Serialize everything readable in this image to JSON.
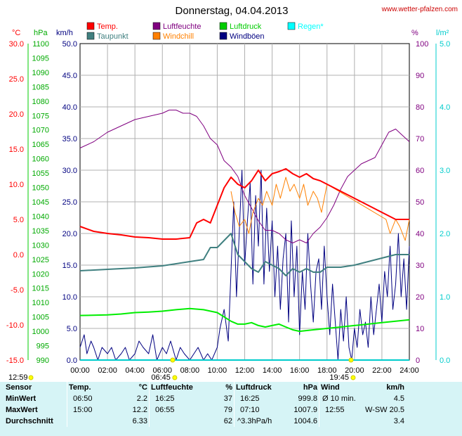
{
  "site": "www.wetter-pfalzen.com",
  "sun": {
    "rise": "06:45",
    "set": "19:45",
    "noon": "12:59"
  },
  "chart_data": {
    "type": "line",
    "title": "Donnerstag, 04.04.2013",
    "x_ticks": [
      "00:00",
      "02:00",
      "04:00",
      "06:00",
      "08:00",
      "10:00",
      "12:00",
      "14:00",
      "16:00",
      "18:00",
      "20:00",
      "22:00",
      "24:00"
    ],
    "axes": {
      "temp": {
        "unit": "°C",
        "color": "#ff0000",
        "min": -15,
        "max": 30,
        "ticks": [
          "30.0",
          "25.0",
          "20.0",
          "15.0",
          "10.0",
          "5.0",
          "0.0",
          "-5.0",
          "-10.0",
          "-15.0"
        ]
      },
      "pressure": {
        "unit": "hPa",
        "color": "#00aa00",
        "min": 990,
        "max": 1100,
        "ticks": [
          "1100",
          "1095",
          "1090",
          "1085",
          "1080",
          "1075",
          "1070",
          "1065",
          "1060",
          "1055",
          "1050",
          "1045",
          "1040",
          "1035",
          "1030",
          "1025",
          "1020",
          "1015",
          "1010",
          "1005",
          "1000",
          "995",
          "990"
        ]
      },
      "wind": {
        "unit": "km/h",
        "color": "#000080",
        "min": 0,
        "max": 50,
        "ticks": [
          "50.0",
          "45.0",
          "40.0",
          "35.0",
          "30.0",
          "25.0",
          "20.0",
          "15.0",
          "10.0",
          "5.0",
          "0.0"
        ]
      },
      "humidity": {
        "unit": "%",
        "color": "#800080",
        "min": 0,
        "max": 100,
        "ticks": [
          "100",
          "90",
          "80",
          "70",
          "60",
          "50",
          "40",
          "30",
          "20",
          "10",
          "0"
        ]
      },
      "rain": {
        "unit": "l/m²",
        "color": "#00cccc",
        "min": 0,
        "max": 5,
        "ticks": [
          "5.0",
          "4.0",
          "3.0",
          "2.0",
          "1.0",
          "0.0"
        ]
      }
    },
    "legend": [
      {
        "name": "Temp.",
        "color": "#ff0000"
      },
      {
        "name": "Luftfeuchte",
        "color": "#800080"
      },
      {
        "name": "Luftdruck",
        "color": "#00cc00"
      },
      {
        "name": "Regen*",
        "color": "#00ffff"
      },
      {
        "name": "Taupunkt",
        "color": "#408080"
      },
      {
        "name": "Windchill",
        "color": "#ff8000"
      },
      {
        "name": "Windböen",
        "color": "#000080"
      }
    ],
    "series": [
      {
        "name": "Temp.",
        "axis": "temp",
        "color": "#ff0000",
        "width": 2,
        "x": [
          0,
          1,
          2,
          3,
          4,
          5,
          6,
          7,
          8,
          8.5,
          9,
          9.5,
          10,
          10.5,
          11,
          11.5,
          12,
          12.5,
          13,
          13.5,
          14,
          14.5,
          15,
          15.5,
          16,
          16.5,
          17,
          17.5,
          18,
          18.5,
          19,
          19.5,
          20,
          21,
          22,
          23,
          24
        ],
        "y": [
          4,
          3.3,
          3,
          2.8,
          2.5,
          2.4,
          2.2,
          2.2,
          2.4,
          4.5,
          5,
          4.5,
          7,
          9.5,
          11,
          10,
          9.5,
          10.5,
          12,
          10.5,
          11.5,
          11.8,
          12.2,
          11.5,
          11,
          11.5,
          10.8,
          10.5,
          10,
          9.5,
          9,
          8.5,
          8,
          7,
          6,
          5,
          5
        ]
      },
      {
        "name": "Taupunkt",
        "axis": "temp",
        "color": "#408080",
        "width": 2,
        "x": [
          0,
          2,
          4,
          6,
          8,
          9,
          9.5,
          10,
          10.5,
          11,
          11.5,
          12,
          12.5,
          13,
          13.5,
          14,
          14.5,
          15,
          15.5,
          16,
          16.5,
          17,
          17.5,
          18,
          18.5,
          19,
          20,
          21,
          22,
          23,
          24
        ],
        "y": [
          -2.3,
          -2.1,
          -1.9,
          -1.6,
          -1,
          -0.7,
          1,
          1,
          2,
          3,
          0,
          -1,
          -2,
          -2.5,
          -1,
          -1.5,
          -2,
          -3,
          -2,
          -2.5,
          -2,
          -2.5,
          -2.5,
          -1.8,
          -1.8,
          -1.8,
          -1.5,
          -1,
          -0.5,
          0,
          0
        ]
      },
      {
        "name": "Luftfeuchte",
        "axis": "humidity",
        "color": "#800080",
        "width": 1,
        "x": [
          0,
          1,
          2,
          3,
          4,
          5,
          6,
          6.5,
          7,
          7.5,
          8,
          8.5,
          9,
          9.5,
          10,
          10.5,
          11,
          11.5,
          12,
          12.5,
          13,
          13.5,
          14,
          14.5,
          15,
          15.5,
          16,
          16.5,
          17,
          17.5,
          18,
          18.5,
          19,
          19.5,
          20,
          20.5,
          21,
          21.5,
          22,
          22.5,
          23,
          23.5,
          24
        ],
        "y": [
          67,
          69,
          72,
          74,
          76,
          77,
          78,
          79,
          79,
          78,
          78,
          77,
          74,
          70,
          68,
          63,
          61,
          58,
          52,
          48,
          44,
          41,
          41,
          40,
          38,
          37,
          38,
          37,
          40,
          42,
          45,
          49,
          54,
          58,
          60,
          62,
          63,
          64,
          68,
          72,
          73,
          71,
          69
        ]
      },
      {
        "name": "Windchill",
        "axis": "temp",
        "color": "#ff8000",
        "width": 1,
        "x": [
          11,
          11.3,
          11.6,
          12,
          12.3,
          12.6,
          13,
          13.3,
          13.6,
          14,
          14.3,
          14.6,
          15,
          15.3,
          15.6,
          16,
          16.3,
          16.6,
          17,
          17.3,
          17.6,
          18,
          22.3,
          22.6,
          23,
          23.3,
          23.7,
          24
        ],
        "y": [
          9,
          6,
          4,
          5,
          3,
          6,
          8,
          7,
          9,
          7,
          10,
          8,
          11,
          9,
          10,
          8,
          10,
          7,
          9,
          8,
          6,
          10,
          5,
          3,
          5,
          4,
          2,
          5
        ]
      },
      {
        "name": "Luftdruck",
        "axis": "pressure",
        "color": "#00ee00",
        "width": 2,
        "x": [
          0,
          2,
          3,
          4,
          5,
          6,
          7,
          8,
          9,
          10,
          10.5,
          11,
          11.5,
          12,
          12.5,
          13,
          13.5,
          14,
          14.5,
          15,
          15.5,
          16,
          17,
          18,
          19,
          20,
          21,
          22,
          23,
          24
        ],
        "y": [
          1005.5,
          1005.7,
          1006,
          1006.5,
          1006.7,
          1007,
          1007.5,
          1007.9,
          1007.5,
          1006.5,
          1005,
          1003.5,
          1002.5,
          1002.5,
          1003,
          1002,
          1001.5,
          1002,
          1002.5,
          1001.5,
          1000.5,
          1000,
          1000.5,
          1001,
          1001.5,
          1002,
          1002.5,
          1003,
          1003.5,
          1004
        ]
      },
      {
        "name": "Windböen",
        "axis": "wind",
        "color": "#000080",
        "width": 1,
        "x": [
          0,
          0.3,
          0.5,
          0.8,
          1,
          1.3,
          1.6,
          2,
          2.3,
          2.6,
          3,
          3.3,
          3.6,
          4,
          4.3,
          4.6,
          5,
          5.3,
          5.6,
          6,
          6.3,
          6.6,
          7,
          7.3,
          7.6,
          8,
          8.3,
          8.6,
          9,
          9.3,
          9.6,
          10,
          10.2,
          10.5,
          10.8,
          11,
          11.2,
          11.4,
          11.6,
          11.8,
          12,
          12.2,
          12.4,
          12.6,
          12.8,
          13,
          13.2,
          13.4,
          13.6,
          13.8,
          14,
          14.2,
          14.4,
          14.6,
          14.8,
          15,
          15.2,
          15.4,
          15.6,
          15.8,
          16,
          16.2,
          16.4,
          16.6,
          16.8,
          17,
          17.2,
          17.4,
          17.6,
          17.8,
          18,
          18.2,
          18.4,
          18.6,
          18.8,
          19,
          19.2,
          19.4,
          19.6,
          19.8,
          20,
          20.2,
          20.4,
          20.6,
          20.8,
          21,
          21.2,
          21.4,
          21.6,
          21.8,
          22,
          22.2,
          22.4,
          22.6,
          22.8,
          23,
          23.2,
          23.4,
          23.6,
          23.8,
          24
        ],
        "y": [
          2,
          4,
          1,
          3,
          2,
          0,
          2,
          1,
          2,
          0,
          1,
          2,
          0,
          1,
          3,
          2,
          1,
          4,
          0,
          2,
          1,
          3,
          0,
          2,
          1,
          0,
          1,
          2,
          0,
          1,
          0,
          2,
          5,
          8,
          3,
          14,
          25,
          10,
          20,
          30,
          15,
          22,
          28,
          12,
          26,
          18,
          30,
          12,
          24,
          14,
          22,
          10,
          18,
          8,
          16,
          20,
          6,
          22,
          10,
          18,
          4,
          14,
          8,
          20,
          12,
          6,
          14,
          16,
          8,
          18,
          10,
          4,
          12,
          6,
          0,
          8,
          3,
          10,
          2,
          0,
          5,
          2,
          8,
          4,
          6,
          2,
          10,
          4,
          8,
          12,
          6,
          14,
          10,
          18,
          8,
          12,
          20,
          10,
          16,
          8,
          18
        ]
      }
    ]
  },
  "stats": {
    "headers": {
      "sensor": "Sensor",
      "temp": "Temp.",
      "temp_unit": "°C",
      "hum": "Luftfeuchte",
      "hum_unit": "%",
      "press": "Luftdruck",
      "press_unit": "hPa",
      "wind": "Wind",
      "wind_unit": "km/h"
    },
    "rows": [
      {
        "label": "MinWert",
        "t_time": "06:50",
        "t_val": "2.2",
        "h_time": "16:25",
        "h_val": "37",
        "p_time": "16:25",
        "p_val": "999.8",
        "w_time": "Ø 10 min.",
        "w_val": "4.5"
      },
      {
        "label": "MaxWert",
        "t_time": "15:00",
        "t_val": "12.2",
        "h_time": "06:55",
        "h_val": "79",
        "p_time": "07:10",
        "p_val": "1007.9",
        "w_time": "12:55",
        "w_val": "W-SW 20.5"
      },
      {
        "label": "Durchschnitt",
        "t_time": "",
        "t_val": "6.33",
        "h_time": "",
        "h_val": "62",
        "p_time": "^3.3hPa/h",
        "p_val": "1004.6",
        "w_time": "",
        "w_val": "3.4"
      }
    ]
  }
}
